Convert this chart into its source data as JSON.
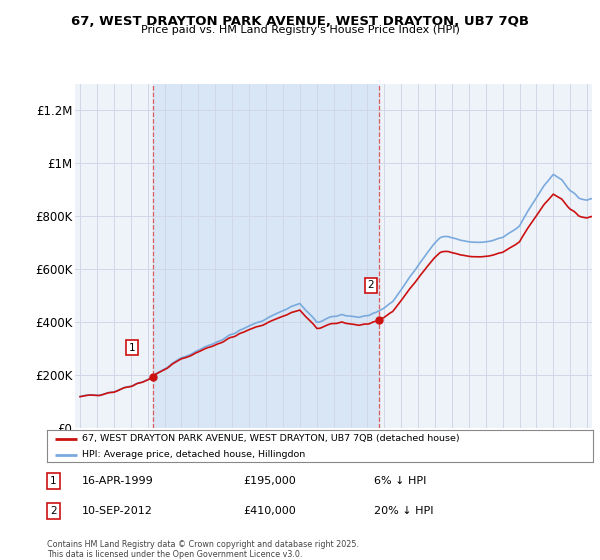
{
  "title_line1": "67, WEST DRAYTON PARK AVENUE, WEST DRAYTON, UB7 7QB",
  "title_line2": "Price paid vs. HM Land Registry's House Price Index (HPI)",
  "ylabel_ticks": [
    "£0",
    "£200K",
    "£400K",
    "£600K",
    "£800K",
    "£1M",
    "£1.2M"
  ],
  "ytick_values": [
    0,
    200000,
    400000,
    600000,
    800000,
    1000000,
    1200000
  ],
  "ylim": [
    0,
    1300000
  ],
  "xlim_start": 1994.7,
  "xlim_end": 2025.3,
  "sale1_x": 1999.29,
  "sale1_y": 195000,
  "sale2_x": 2012.71,
  "sale2_y": 410000,
  "hpi_color": "#7aaadd",
  "price_color": "#cc1111",
  "vline_color": "#dd4444",
  "grid_color": "#d0d8e8",
  "bg_color": "#eef3fa",
  "plot_bg": "#eef3fa",
  "shade_color": "#d8e6f5",
  "legend_address": "67, WEST DRAYTON PARK AVENUE, WEST DRAYTON, UB7 7QB (detached house)",
  "legend_hpi": "HPI: Average price, detached house, Hillingdon",
  "note1_label": "1",
  "note1_date": "16-APR-1999",
  "note1_price": "£195,000",
  "note1_hpi": "6% ↓ HPI",
  "note2_label": "2",
  "note2_date": "10-SEP-2012",
  "note2_price": "£410,000",
  "note2_hpi": "20% ↓ HPI",
  "footer": "Contains HM Land Registry data © Crown copyright and database right 2025.\nThis data is licensed under the Open Government Licence v3.0."
}
